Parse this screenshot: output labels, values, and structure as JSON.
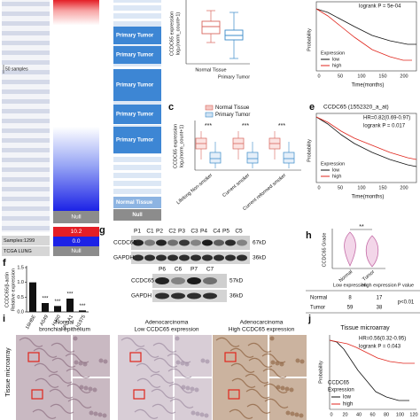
{
  "panels": {
    "a": {
      "scale_label": "50 samples",
      "null_top": "Null",
      "color_high": "10.2",
      "color_low": "0.0",
      "null_bottom": "Null",
      "samples": "Samples:1299",
      "dataset": "TCGA LUNG",
      "groups": [
        "Primary Tumor",
        "Primary Tumor",
        "Primary Tumor",
        "Primary Tumor",
        "Primary Tumor",
        "Normal Tissue",
        "Null"
      ]
    },
    "b": {
      "y_label": [
        "CCDC65 expression",
        "log₂(norm_count+1)"
      ],
      "categories": [
        "Normal Tissue",
        "Primary Tumor"
      ]
    },
    "c": {
      "letter": "c",
      "y_label": [
        "CCDC65 expression",
        "log₂(norm_count+1)"
      ],
      "legend": [
        "Normal Tissue",
        "Primary Tumor"
      ],
      "significance": [
        "***",
        "***",
        "***"
      ],
      "categories": [
        "Lifelong Non-smoker",
        "Current smoker",
        "Current reformed smoker"
      ]
    },
    "d": {
      "logrank": "logrank P = 5e-04",
      "y_label": "Probability",
      "x_label": "Time(months)",
      "xticks": [
        "0",
        "50",
        "100",
        "150",
        "200"
      ],
      "legend_title": "Expression",
      "legend": [
        "low",
        "high"
      ]
    },
    "e": {
      "letter": "e",
      "title": "CCDC65 (1552320_a_at)",
      "hr": "HR=0.82(0.69-0.97)",
      "logrank": "logrank P = 0.017",
      "y_label": "Probability",
      "x_label": "Time(months)",
      "xticks": [
        "0",
        "50",
        "100",
        "150",
        "200"
      ],
      "legend_title": "Expression",
      "legend": [
        "low",
        "high"
      ]
    },
    "f": {
      "letter": "f",
      "chart_data": {
        "type": "bar",
        "y_label": [
          "CCDC65/β-actin",
          "Relative expression"
        ],
        "categories": [
          "16HBE",
          "A549",
          "H460",
          "SPC-A1",
          "h1975"
        ],
        "values": [
          1.0,
          0.3,
          0.2,
          0.45,
          0.05
        ],
        "significance": [
          null,
          "***",
          "***",
          "***",
          "***"
        ],
        "color": "#111111",
        "ylim": [
          0,
          1.5
        ],
        "yticks": [
          {
            "value": 0,
            "label": "0.0"
          },
          {
            "value": 0.5,
            "label": "0.5"
          },
          {
            "value": 1,
            "label": "1.0"
          },
          {
            "value": 1.5,
            "label": "1.5"
          }
        ]
      }
    },
    "g": {
      "letter": "g",
      "lanes_top": [
        "P1",
        "C1",
        "P2",
        "C2",
        "P3",
        "C3",
        "P4",
        "C4",
        "P5",
        "C5"
      ],
      "proteins_top": [
        "CCDC65",
        "GAPDH"
      ],
      "sizes_top": [
        "67kD",
        "36kD"
      ],
      "lanes_bottom": [
        "P6",
        "C6",
        "P7",
        "C7"
      ],
      "proteins_bottom": [
        "CCDC65",
        "GAPDH"
      ],
      "sizes_bottom": [
        "57kD",
        "36kD"
      ]
    },
    "h": {
      "letter": "h",
      "y_label": "CCDC65 Grade",
      "significance": "**",
      "categories": [
        "Normal",
        "Tumor"
      ],
      "table": {
        "header": [
          "Low expression",
          "High expression",
          "P value"
        ],
        "rows": [
          [
            "Normal",
            "8",
            "17"
          ],
          [
            "Tumor",
            "59",
            "38"
          ]
        ],
        "p": "p<0.01"
      }
    },
    "i": {
      "letter": "i",
      "side_label": "Tissue microarray",
      "titles": [
        [
          "Normal",
          "bronchial epithelium"
        ],
        [
          "Adenocarcinoma",
          "Low CCDC65 expression"
        ],
        [
          "Adenocarcinoma",
          "High CCDC65 expression"
        ]
      ]
    },
    "j": {
      "letter": "j",
      "title": "Tissue microarray",
      "hr": "HR=0.56(0.32-0.95)",
      "logrank": "logrank P = 0.043",
      "y_label": "Probability",
      "legend_title": [
        "CCDC65",
        "Expression"
      ],
      "legend": [
        "low",
        "high"
      ],
      "xticks": [
        "0",
        "20",
        "40",
        "60",
        "80",
        "100",
        "120"
      ]
    }
  }
}
